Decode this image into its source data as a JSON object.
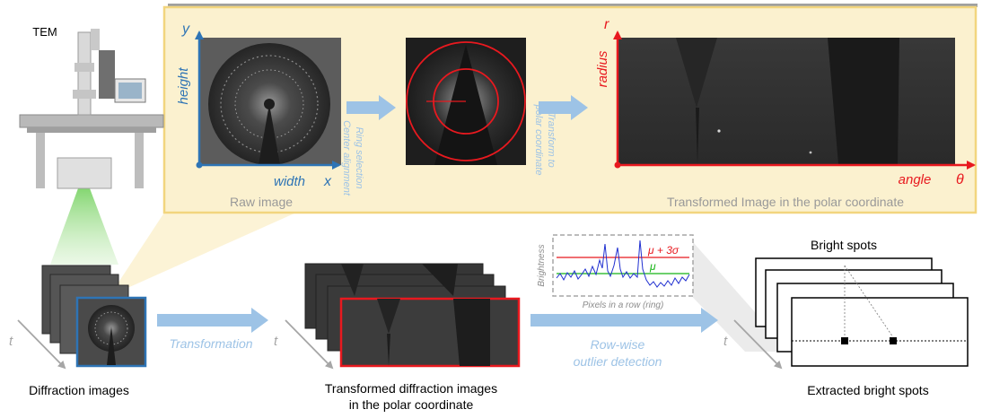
{
  "labels": {
    "tem": "TEM",
    "diffraction_images": "Diffraction images",
    "transformed_line1": "Transformed diffraction images",
    "transformed_line2": "in the polar coordinate",
    "extracted": "Extracted bright spots",
    "bright_spots": "Bright spots",
    "transformation": "Transformation",
    "row_wise_line1": "Row-wise",
    "row_wise_line2": "outlier detection",
    "time_axis": "t"
  },
  "inset": {
    "raw_image": "Raw image",
    "y_axis": "y",
    "x_axis": "x",
    "height_label": "height",
    "width_label": "width",
    "ring_selection": "Ring selection",
    "center_alignment": "Center alignment",
    "transform_line1": "Transform to",
    "transform_line2": "polar coordinate",
    "polar_caption": "Transformed Image in the polar coordinate",
    "r_axis": "r",
    "theta_axis": "θ",
    "radius_label": "radius",
    "angle_label": "angle"
  },
  "plot": {
    "ylabel": "Brightness",
    "xlabel": "Pixels in a row (ring)",
    "upper_threshold": "μ + 3σ",
    "mean": "μ"
  },
  "colors": {
    "inset_bg": "#fbf1cf",
    "inset_border": "#f2d57e",
    "blue_axis": "#2e74b5",
    "red_axis": "#e8191f",
    "arrow": "#9dc3e6",
    "caption_grey": "#999999",
    "signal": "#1f2fd0",
    "mean_line": "#16b416"
  }
}
